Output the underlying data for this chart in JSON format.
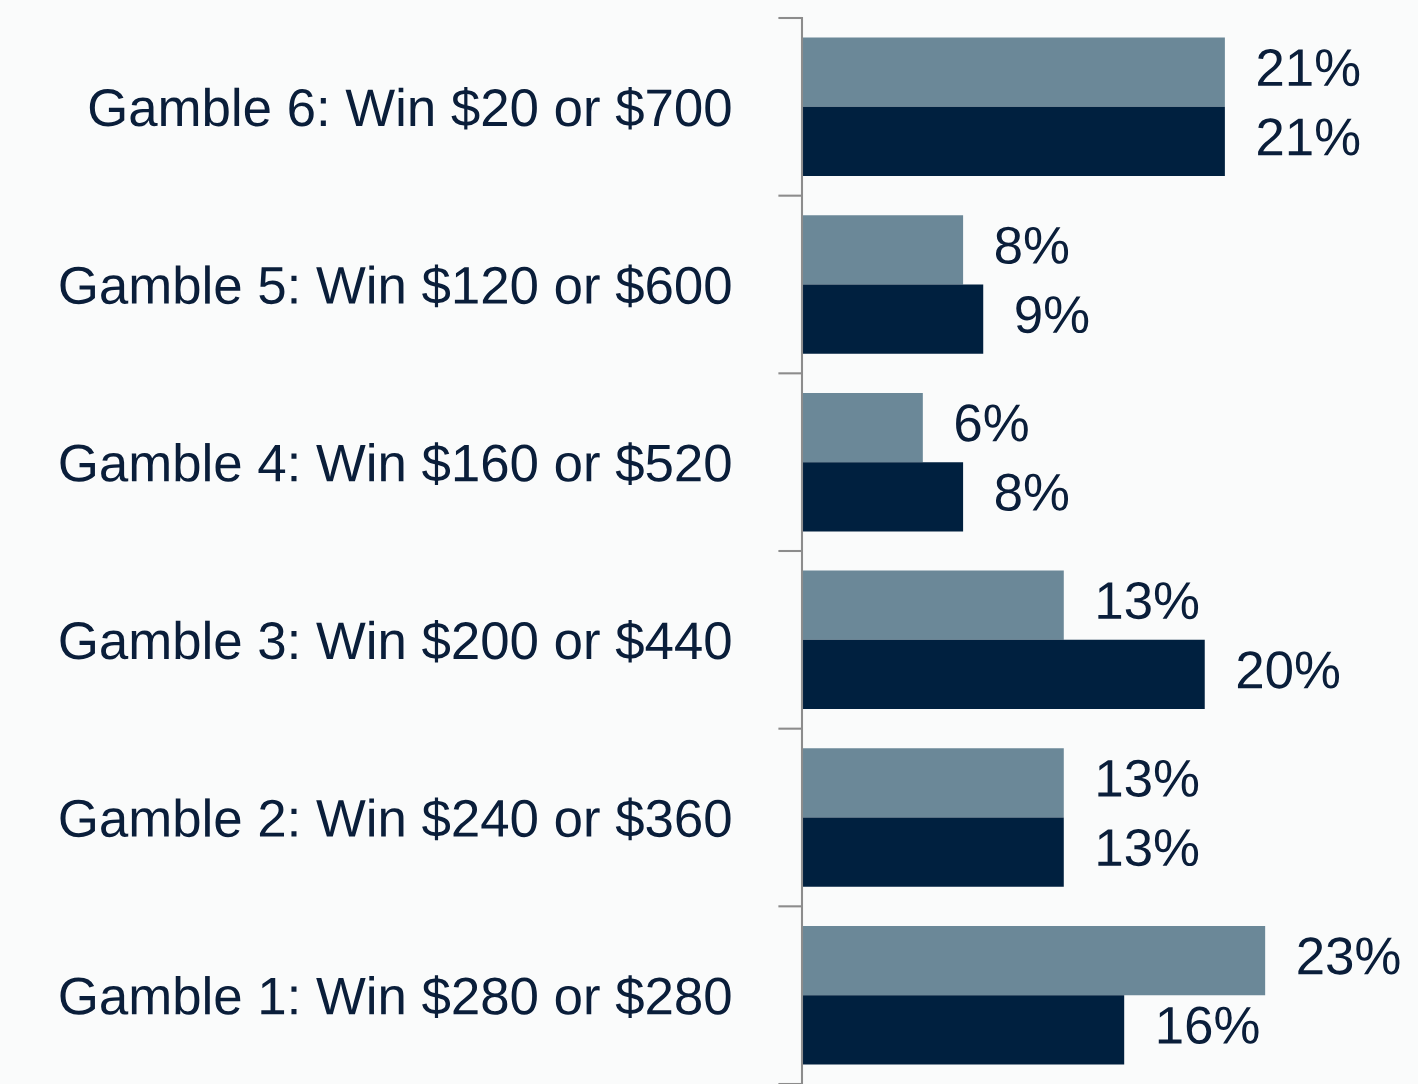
{
  "chart_data": {
    "type": "bar",
    "orientation": "horizontal",
    "categories": [
      "Gamble 6: Win $20 or $700",
      "Gamble 5: Win $120 or $600",
      "Gamble 4: Win $160 or $520",
      "Gamble 3: Win $200 or $440",
      "Gamble 2: Win $240 or $360",
      "Gamble 1: Win $280 or $280"
    ],
    "series": [
      {
        "color": "#6b8898",
        "values": [
          21,
          8,
          6,
          13,
          13,
          23
        ],
        "value_labels": [
          "21%",
          "8%",
          "6%",
          "13%",
          "13%",
          "23%"
        ]
      },
      {
        "color": "#00203f",
        "values": [
          21,
          9,
          8,
          20,
          13,
          16
        ],
        "value_labels": [
          "21%",
          "9%",
          "8%",
          "20%",
          "13%",
          "16%"
        ]
      }
    ],
    "tick_labels": "y"
  }
}
